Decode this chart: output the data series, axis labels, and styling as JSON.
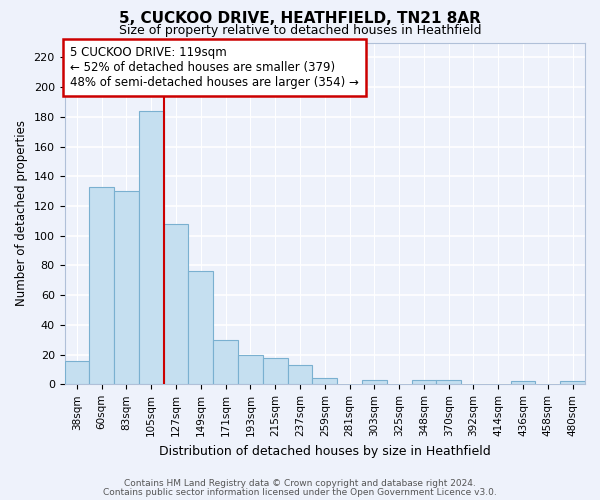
{
  "title": "5, CUCKOO DRIVE, HEATHFIELD, TN21 8AR",
  "subtitle": "Size of property relative to detached houses in Heathfield",
  "xlabel": "Distribution of detached houses by size in Heathfield",
  "ylabel": "Number of detached properties",
  "bar_color": "#c5dff0",
  "bar_edgecolor": "#7ab0d0",
  "categories": [
    "38sqm",
    "60sqm",
    "83sqm",
    "105sqm",
    "127sqm",
    "149sqm",
    "171sqm",
    "193sqm",
    "215sqm",
    "237sqm",
    "259sqm",
    "281sqm",
    "303sqm",
    "325sqm",
    "348sqm",
    "370sqm",
    "392sqm",
    "414sqm",
    "436sqm",
    "458sqm",
    "480sqm"
  ],
  "values": [
    16,
    133,
    130,
    184,
    108,
    76,
    30,
    20,
    18,
    13,
    4,
    0,
    3,
    0,
    3,
    3,
    0,
    0,
    2,
    0,
    2
  ],
  "ylim": [
    0,
    230
  ],
  "yticks": [
    0,
    20,
    40,
    60,
    80,
    100,
    120,
    140,
    160,
    180,
    200,
    220
  ],
  "property_line_index": 3,
  "annotation_title": "5 CUCKOO DRIVE: 119sqm",
  "annotation_line1": "← 52% of detached houses are smaller (379)",
  "annotation_line2": "48% of semi-detached houses are larger (354) →",
  "annotation_box_color": "#ffffff",
  "annotation_box_edgecolor": "#cc0000",
  "property_line_color": "#cc0000",
  "footer_line1": "Contains HM Land Registry data © Crown copyright and database right 2024.",
  "footer_line2": "Contains public sector information licensed under the Open Government Licence v3.0.",
  "background_color": "#eef2fb",
  "grid_color": "#ffffff",
  "spine_color": "#b0c0d8"
}
